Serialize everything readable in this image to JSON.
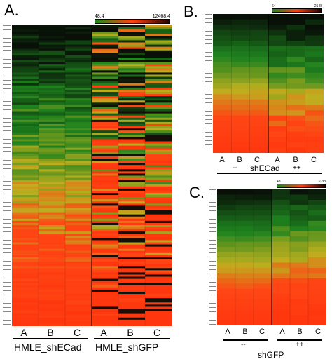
{
  "panels": {
    "A": {
      "letter": "A.",
      "scale_min": "48.4",
      "scale_max": "12468.4",
      "columns": [
        "A",
        "B",
        "C",
        "A",
        "B",
        "C"
      ],
      "groups": [
        "HMLE_shECad",
        "HMLE_shGFP"
      ]
    },
    "B": {
      "letter": "B.",
      "scale_min": "64",
      "scale_max": "2148",
      "columns": [
        "A",
        "B",
        "C",
        "A",
        "B",
        "C"
      ],
      "sub_groups": [
        "--",
        "++"
      ],
      "group": "shECad"
    },
    "C": {
      "letter": "C.",
      "scale_min": "48",
      "scale_max": "3333",
      "columns": [
        "A",
        "B",
        "C",
        "A",
        "B",
        "C"
      ],
      "sub_groups": [
        "--",
        "++"
      ],
      "group": "shGFP"
    }
  },
  "colors": {
    "low": "#0a1a0a",
    "mid_green": "#1e8a1e",
    "mid_yellow": "#b8b020",
    "high": "#ff3a10"
  },
  "chart_data": [
    {
      "type": "heatmap",
      "panel": "A",
      "columns": [
        "A",
        "B",
        "C",
        "A",
        "B",
        "C"
      ],
      "scale_range": [
        48.4,
        12468.4
      ]
    },
    {
      "type": "heatmap",
      "panel": "B",
      "columns": [
        "A",
        "B",
        "C",
        "A",
        "B",
        "C"
      ],
      "scale_range": [
        64,
        2148
      ]
    },
    {
      "type": "heatmap",
      "panel": "C",
      "columns": [
        "A",
        "B",
        "C",
        "A",
        "B",
        "C"
      ],
      "scale_range": [
        48,
        3333
      ]
    }
  ]
}
